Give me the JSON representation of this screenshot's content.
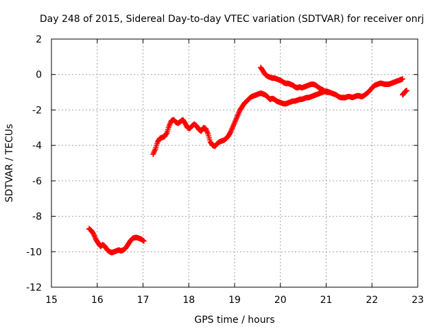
{
  "chart_data": {
    "type": "scatter",
    "title": "Day 248 of 2015, Sidereal Day-to-day VTEC variation (SDTVAR) for receiver onrj",
    "xlabel": "GPS time / hours",
    "ylabel": "SDTVAR / TECUs",
    "xlim": [
      15,
      23
    ],
    "ylim": [
      -12,
      2
    ],
    "xticks": [
      15,
      16,
      17,
      18,
      19,
      20,
      21,
      22,
      23
    ],
    "yticks": [
      -12,
      -10,
      -8,
      -6,
      -4,
      -2,
      0,
      2
    ],
    "xtick_labels": [
      "15",
      "16",
      "17",
      "18",
      "19",
      "20",
      "21",
      "22",
      "23"
    ],
    "ytick_labels": [
      "-12",
      "-10",
      "-8",
      "-6",
      "-4",
      "-2",
      "0",
      "2"
    ],
    "grid": true,
    "marker": "+",
    "color": "#ff0000",
    "series": [
      {
        "name": "segment-1",
        "x": [
          15.82,
          15.87,
          15.92,
          15.97,
          16.02,
          16.07,
          16.12,
          16.17,
          16.22,
          16.27,
          16.32,
          16.37,
          16.42,
          16.47,
          16.52,
          16.57,
          16.62,
          16.67,
          16.72,
          16.77,
          16.82,
          16.87,
          16.92,
          16.97,
          17.02
        ],
        "y": [
          -8.7,
          -8.8,
          -9.0,
          -9.3,
          -9.5,
          -9.7,
          -9.6,
          -9.7,
          -9.9,
          -10.0,
          -10.05,
          -10.0,
          -9.95,
          -9.9,
          -9.95,
          -9.9,
          -9.8,
          -9.6,
          -9.4,
          -9.25,
          -9.2,
          -9.2,
          -9.25,
          -9.3,
          -9.4
        ]
      },
      {
        "name": "segment-2",
        "x": [
          17.22,
          17.27,
          17.32,
          17.37,
          17.42,
          17.47,
          17.52,
          17.57,
          17.62,
          17.67,
          17.72,
          17.77,
          17.82,
          17.87,
          17.92,
          17.97,
          18.02,
          18.07,
          18.12,
          18.17,
          18.22,
          18.27,
          18.32,
          18.37,
          18.42,
          18.47,
          18.52,
          18.57,
          18.62,
          18.67,
          18.72,
          18.77,
          18.82,
          18.87,
          18.92,
          18.97,
          19.02,
          19.07,
          19.12,
          19.17,
          19.22,
          19.27,
          19.32,
          19.37,
          19.42,
          19.47,
          19.52,
          19.57,
          19.62,
          19.67,
          19.72,
          19.77,
          19.82,
          19.87,
          19.92,
          19.97,
          20.02,
          20.07,
          20.12,
          20.17,
          20.22,
          20.27,
          20.32,
          20.37,
          20.42,
          20.47,
          20.52,
          20.57,
          20.62,
          20.67,
          20.72,
          20.77,
          20.82,
          20.87,
          20.92,
          20.97,
          21.02,
          21.07,
          21.12,
          21.17,
          21.22,
          21.27,
          21.32,
          21.37,
          21.42,
          21.47,
          21.52,
          21.57,
          21.62,
          21.67,
          21.72,
          21.77,
          21.82,
          21.87,
          21.92,
          21.97,
          22.02,
          22.07,
          22.12,
          22.17,
          22.22,
          22.27,
          22.32,
          22.37,
          22.42,
          22.47,
          22.52,
          22.57,
          22.62,
          22.67
        ],
        "y": [
          -4.5,
          -4.2,
          -3.8,
          -3.6,
          -3.55,
          -3.5,
          -3.3,
          -2.9,
          -2.6,
          -2.55,
          -2.7,
          -2.75,
          -2.65,
          -2.55,
          -2.75,
          -3.0,
          -3.05,
          -2.9,
          -2.8,
          -2.9,
          -3.1,
          -3.2,
          -3.0,
          -3.05,
          -3.35,
          -3.8,
          -4.0,
          -4.05,
          -3.9,
          -3.8,
          -3.75,
          -3.7,
          -3.6,
          -3.45,
          -3.2,
          -2.9,
          -2.6,
          -2.3,
          -2.0,
          -1.8,
          -1.6,
          -1.5,
          -1.35,
          -1.25,
          -1.2,
          -1.15,
          -1.1,
          -1.05,
          -1.1,
          -1.15,
          -1.25,
          -1.4,
          -1.35,
          -1.4,
          -1.5,
          -1.55,
          -1.6,
          -1.65,
          -1.65,
          -1.6,
          -1.55,
          -1.5,
          -1.5,
          -1.45,
          -1.4,
          -1.4,
          -1.35,
          -1.3,
          -1.3,
          -1.25,
          -1.2,
          -1.15,
          -1.1,
          -1.05,
          -1.0,
          -0.95,
          -0.95,
          -1.0,
          -1.05,
          -1.1,
          -1.15,
          -1.25,
          -1.3,
          -1.3,
          -1.3,
          -1.25,
          -1.25,
          -1.3,
          -1.25,
          -1.2,
          -1.2,
          -1.25,
          -1.2,
          -1.1,
          -1.0,
          -0.85,
          -0.7,
          -0.6,
          -0.55,
          -0.5,
          -0.5,
          -0.55,
          -0.55,
          -0.55,
          -0.5,
          -0.45,
          -0.4,
          -0.35,
          -0.3,
          -0.25
        ]
      },
      {
        "name": "segment-3",
        "x": [
          19.57,
          19.62,
          19.67,
          19.72,
          19.77,
          19.82,
          19.87,
          19.92,
          19.97,
          20.02,
          20.07,
          20.12,
          20.17,
          20.22,
          20.27,
          20.32,
          20.37,
          20.42,
          20.47,
          20.52,
          20.57,
          20.62,
          20.67,
          20.72,
          20.77,
          20.82,
          20.87,
          20.92,
          20.97,
          21.02,
          21.07
        ],
        "y": [
          0.4,
          0.2,
          0.0,
          -0.1,
          -0.15,
          -0.2,
          -0.2,
          -0.25,
          -0.3,
          -0.35,
          -0.45,
          -0.5,
          -0.5,
          -0.55,
          -0.6,
          -0.7,
          -0.75,
          -0.7,
          -0.75,
          -0.7,
          -0.65,
          -0.6,
          -0.55,
          -0.55,
          -0.6,
          -0.7,
          -0.8,
          -0.85,
          -0.95,
          -1.0,
          -1.0
        ]
      },
      {
        "name": "segment-4",
        "x": [
          22.67,
          22.7,
          22.73,
          22.76
        ],
        "y": [
          -1.15,
          -1.05,
          -0.95,
          -0.9
        ]
      }
    ]
  }
}
